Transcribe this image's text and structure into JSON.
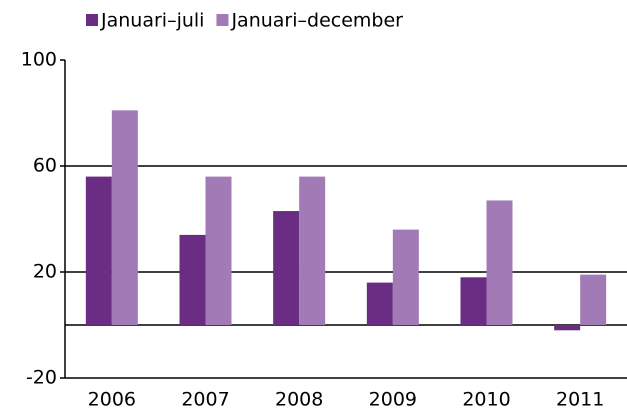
{
  "chart_data": {
    "type": "bar",
    "categories": [
      "2006",
      "2007",
      "2008",
      "2009",
      "2010",
      "2011"
    ],
    "series": [
      {
        "name": "Januari–juli",
        "color": "#6b2d83",
        "values": [
          56,
          34,
          43,
          16,
          18,
          -2
        ]
      },
      {
        "name": "Januari–december",
        "color": "#a27bb6",
        "values": [
          81,
          56,
          56,
          36,
          47,
          19
        ]
      }
    ],
    "ylim": [
      -20,
      100
    ],
    "yticks": [
      -20,
      20,
      60,
      100
    ],
    "grid": true
  }
}
